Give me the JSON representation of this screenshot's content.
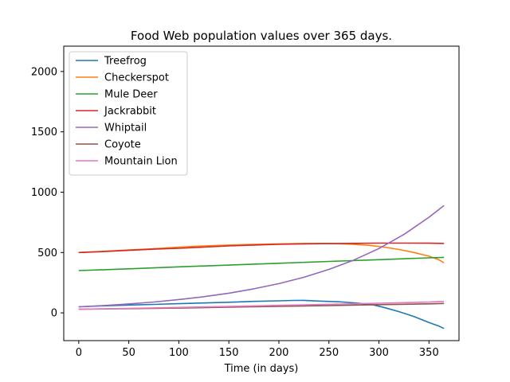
{
  "chart_data": {
    "type": "line",
    "title": "Food Web population values over 365 days.",
    "xlabel": "Time (in days)",
    "ylabel": "",
    "xlim": [
      -15,
      380
    ],
    "ylim": [
      -230,
      2210
    ],
    "xticks": [
      0,
      50,
      100,
      150,
      200,
      250,
      300,
      350
    ],
    "yticks": [
      0,
      500,
      1000,
      1500,
      2000
    ],
    "grid": false,
    "legend_position": "top-left",
    "series": [
      {
        "name": "Treefrog",
        "color": "#1f77b4",
        "x": [
          0,
          25,
          50,
          75,
          100,
          125,
          150,
          175,
          200,
          215,
          225,
          240,
          260,
          280,
          295,
          305,
          320,
          335,
          350,
          360,
          365
        ],
        "y": [
          50,
          58,
          65,
          70,
          76,
          82,
          88,
          95,
          100,
          103,
          104,
          98,
          92,
          80,
          65,
          45,
          10,
          -30,
          -80,
          -110,
          -130
        ]
      },
      {
        "name": "Checkerspot",
        "color": "#ff7f0e",
        "x": [
          0,
          25,
          50,
          75,
          100,
          125,
          150,
          175,
          200,
          225,
          250,
          270,
          290,
          305,
          320,
          335,
          350,
          360,
          365
        ],
        "y": [
          500,
          510,
          522,
          532,
          545,
          555,
          562,
          568,
          572,
          575,
          575,
          570,
          560,
          545,
          525,
          500,
          470,
          440,
          415
        ]
      },
      {
        "name": "Mule Deer",
        "color": "#2ca02c",
        "x": [
          0,
          50,
          100,
          150,
          200,
          250,
          300,
          350,
          365
        ],
        "y": [
          350,
          365,
          381,
          396,
          411,
          426,
          441,
          456,
          460
        ]
      },
      {
        "name": "Jackrabbit",
        "color": "#d62728",
        "x": [
          0,
          25,
          50,
          75,
          100,
          125,
          150,
          175,
          200,
          225,
          250,
          275,
          300,
          325,
          350,
          365
        ],
        "y": [
          500,
          508,
          518,
          528,
          535,
          545,
          555,
          562,
          568,
          572,
          574,
          576,
          578,
          578,
          577,
          575
        ]
      },
      {
        "name": "Whiptail",
        "color": "#9467bd",
        "x": [
          0,
          25,
          50,
          75,
          100,
          125,
          150,
          175,
          200,
          225,
          250,
          275,
          300,
          325,
          350,
          365
        ],
        "y": [
          50,
          61,
          74,
          90,
          110,
          134,
          163,
          199,
          242,
          295,
          360,
          438,
          533,
          650,
          792,
          890
        ]
      },
      {
        "name": "Coyote",
        "color": "#8c564b",
        "x": [
          0,
          50,
          100,
          150,
          200,
          250,
          300,
          350,
          365
        ],
        "y": [
          30,
          35,
          40,
          47,
          54,
          61,
          68,
          75,
          78
        ]
      },
      {
        "name": "Mountain Lion",
        "color": "#e377c2",
        "x": [
          0,
          50,
          100,
          150,
          200,
          250,
          300,
          350,
          365
        ],
        "y": [
          30,
          37,
          45,
          53,
          62,
          71,
          80,
          89,
          95
        ]
      }
    ]
  }
}
